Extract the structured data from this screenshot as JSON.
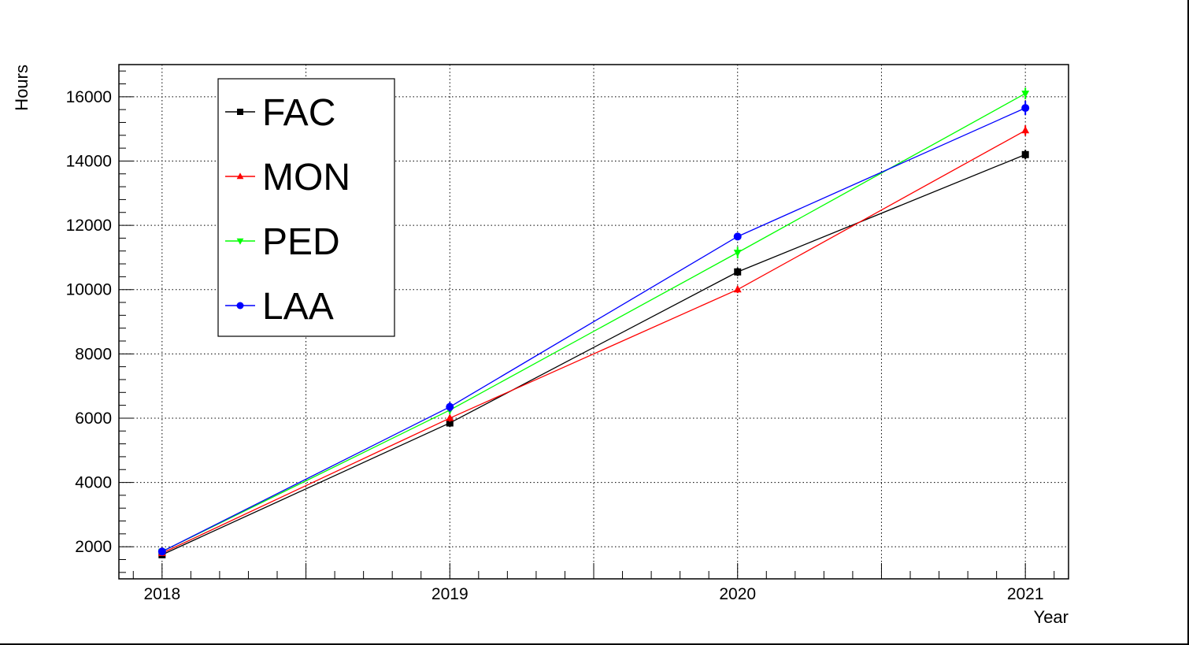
{
  "chart_data": {
    "type": "line",
    "title": "",
    "xlabel": "Year",
    "ylabel": "Hours",
    "x": [
      2018,
      2019,
      2020,
      2021
    ],
    "xlim": [
      2017.85,
      2021.15
    ],
    "ylim": [
      1000,
      17000
    ],
    "x_ticks": [
      2018,
      2019,
      2020,
      2021
    ],
    "x_tick_labels": [
      "2018",
      "2019",
      "2020",
      "2021"
    ],
    "y_ticks": [
      2000,
      4000,
      6000,
      8000,
      10000,
      12000,
      14000,
      16000
    ],
    "y_tick_labels": [
      "2000",
      "4000",
      "6000",
      "8000",
      "10000",
      "12000",
      "14000",
      "16000"
    ],
    "grid": true,
    "legend_position": "top-left",
    "series": [
      {
        "name": "FAC",
        "color": "#000000",
        "marker": "square",
        "values": [
          1750,
          5850,
          10550,
          14200
        ],
        "errors": [
          70,
          120,
          130,
          150
        ]
      },
      {
        "name": "MON",
        "color": "#ff0000",
        "marker": "triangle-up",
        "values": [
          1800,
          6000,
          10000,
          14950
        ],
        "errors": [
          60,
          110,
          110,
          160
        ]
      },
      {
        "name": "PED",
        "color": "#00ff00",
        "marker": "triangle-down",
        "values": [
          1850,
          6250,
          11150,
          16100
        ],
        "errors": [
          60,
          130,
          180,
          180
        ]
      },
      {
        "name": "LAA",
        "color": "#0000ff",
        "marker": "circle",
        "values": [
          1850,
          6350,
          11650,
          15650
        ],
        "errors": [
          70,
          150,
          110,
          220
        ]
      }
    ]
  }
}
